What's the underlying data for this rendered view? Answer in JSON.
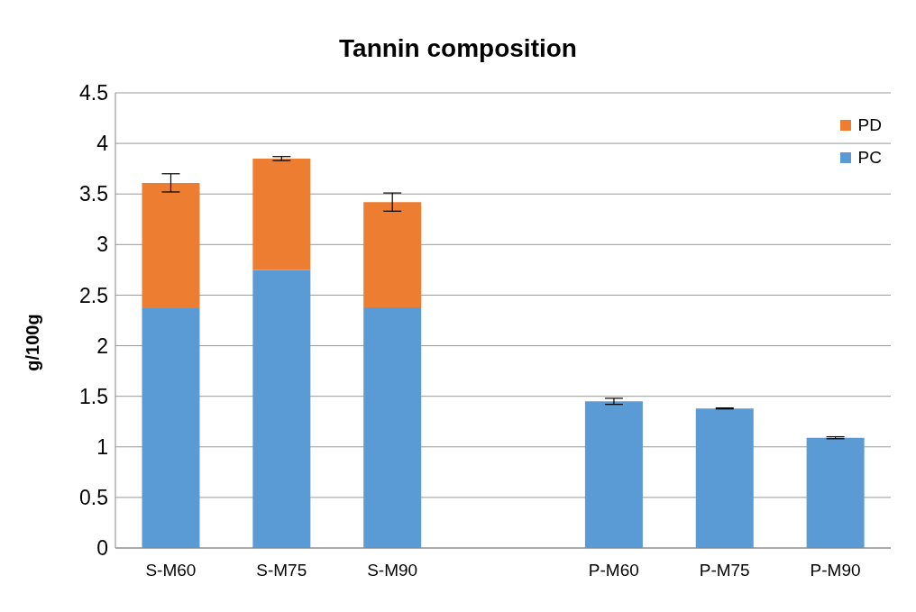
{
  "chart_data": {
    "type": "bar",
    "title": "Tannin composition",
    "ylabel": "g/100g",
    "stacked": true,
    "categories": [
      "S-M60",
      "S-M75",
      "S-M90",
      null,
      "P-M60",
      "P-M75",
      "P-M90"
    ],
    "series": [
      {
        "name": "PC",
        "color": "#5b9bd5",
        "values": [
          2.37,
          2.75,
          2.38,
          null,
          1.45,
          1.38,
          1.09
        ],
        "errors": [
          null,
          null,
          null,
          null,
          0.03,
          0.005,
          0.01
        ]
      },
      {
        "name": "PD",
        "color": "#ed7d31",
        "values": [
          1.24,
          1.1,
          1.04,
          null,
          null,
          null,
          null
        ],
        "errors": [
          0.09,
          0.02,
          0.09,
          null,
          null,
          null,
          null
        ]
      }
    ],
    "ylim": [
      0,
      4.5
    ],
    "yticks": [
      0,
      0.5,
      1,
      1.5,
      2,
      2.5,
      3,
      3.5,
      4,
      4.5
    ],
    "grid": "y",
    "legend": "top right"
  }
}
